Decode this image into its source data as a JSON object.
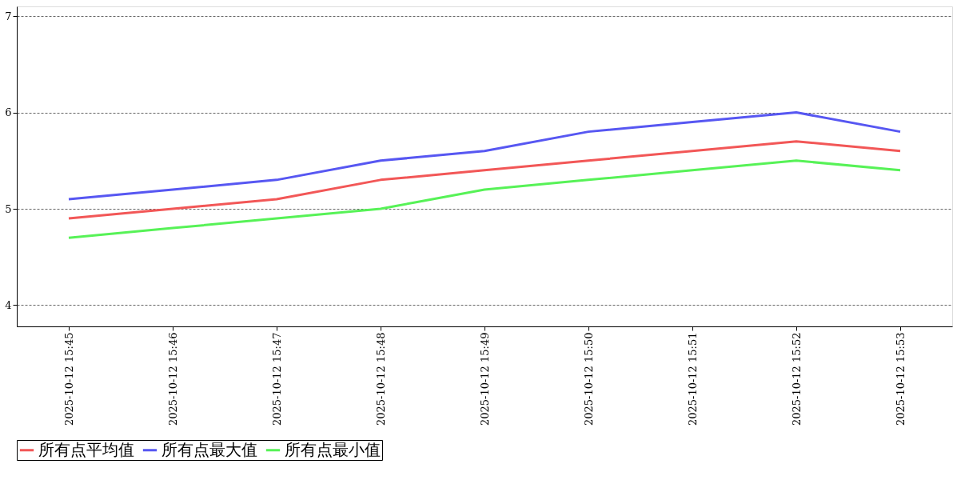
{
  "chart_data": {
    "type": "line",
    "categories": [
      "2025-10-12 15:45",
      "2025-10-12 15:46",
      "2025-10-12 15:47",
      "2025-10-12 15:48",
      "2025-10-12 15:49",
      "2025-10-12 15:50",
      "2025-10-12 15:51",
      "2025-10-12 15:52",
      "2025-10-12 15:53"
    ],
    "series": [
      {
        "name": "所有点平均值",
        "color": "#f25757",
        "values": [
          4.9,
          5.0,
          5.1,
          5.3,
          5.4,
          5.5,
          5.6,
          5.7,
          5.6
        ]
      },
      {
        "name": "所有点最大值",
        "color": "#5757f2",
        "values": [
          5.1,
          5.2,
          5.3,
          5.5,
          5.6,
          5.8,
          5.9,
          6.0,
          5.8
        ]
      },
      {
        "name": "所有点最小值",
        "color": "#57f257",
        "values": [
          4.7,
          4.8,
          4.9,
          5.0,
          5.2,
          5.3,
          5.4,
          5.5,
          5.4
        ]
      }
    ],
    "ylim": [
      3.78,
      7.1
    ],
    "yticks": [
      4,
      5,
      6,
      7
    ],
    "grid": "y",
    "legend": "bottom",
    "marker": "none",
    "line_style": "solid"
  }
}
